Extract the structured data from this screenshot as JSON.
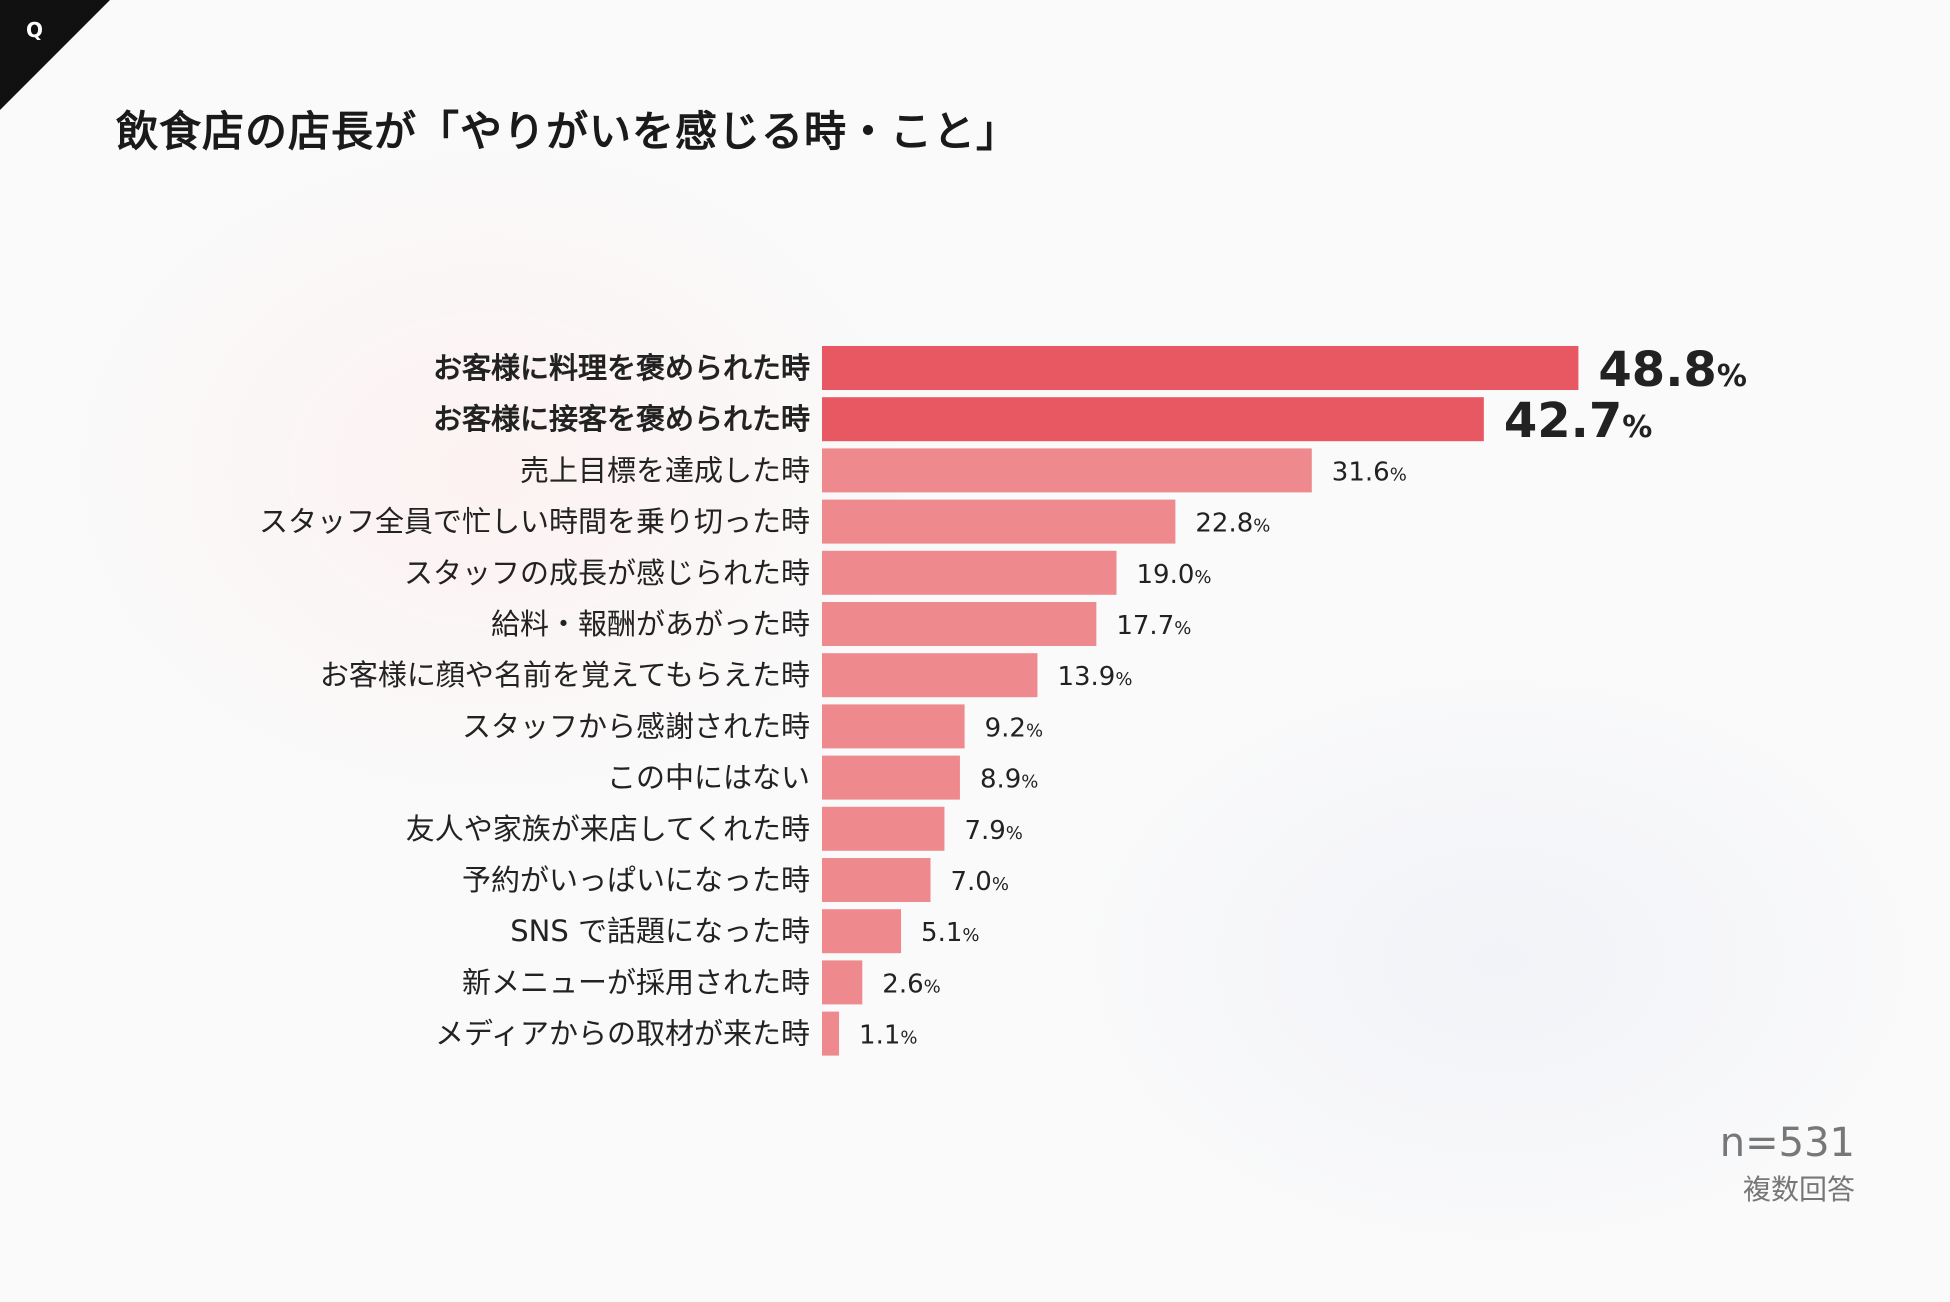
{
  "corner_label": "Q",
  "title": "飲食店の店長が「やりがいを感じる時・こと」",
  "sample_size": "n=531",
  "note": "複数回答",
  "colors": {
    "highlight": "#e85862",
    "normal": "#ee8a8e"
  },
  "chart_data": {
    "type": "bar",
    "orientation": "horizontal",
    "unit": "%",
    "title": "飲食店の店長が「やりがいを感じる時・こと」",
    "categories": [
      "お客様に料理を褒められた時",
      "お客様に接客を褒められた時",
      "売上目標を達成した時",
      "スタッフ全員で忙しい時間を乗り切った時",
      "スタッフの成長が感じられた時",
      "給料・報酬があがった時",
      "お客様に顔や名前を覚えてもらえた時",
      "スタッフから感謝された時",
      "この中にはない",
      "友人や家族が来店してくれた時",
      "予約がいっぱいになった時",
      "SNS で話題になった時",
      "新メニューが採用された時",
      "メディアからの取材が来た時"
    ],
    "values": [
      48.8,
      42.7,
      31.6,
      22.8,
      19.0,
      17.7,
      13.9,
      9.2,
      8.9,
      7.9,
      7.0,
      5.1,
      2.6,
      1.1
    ],
    "value_labels": [
      "48.8",
      "42.7",
      "31.6",
      "22.8",
      "19.0",
      "17.7",
      "13.9",
      "9.2",
      "8.9",
      "7.9",
      "7.0",
      "5.1",
      "2.6",
      "1.1"
    ],
    "highlighted": [
      0,
      1
    ],
    "xlim": [
      0,
      50
    ],
    "grid": false,
    "legend": false
  }
}
